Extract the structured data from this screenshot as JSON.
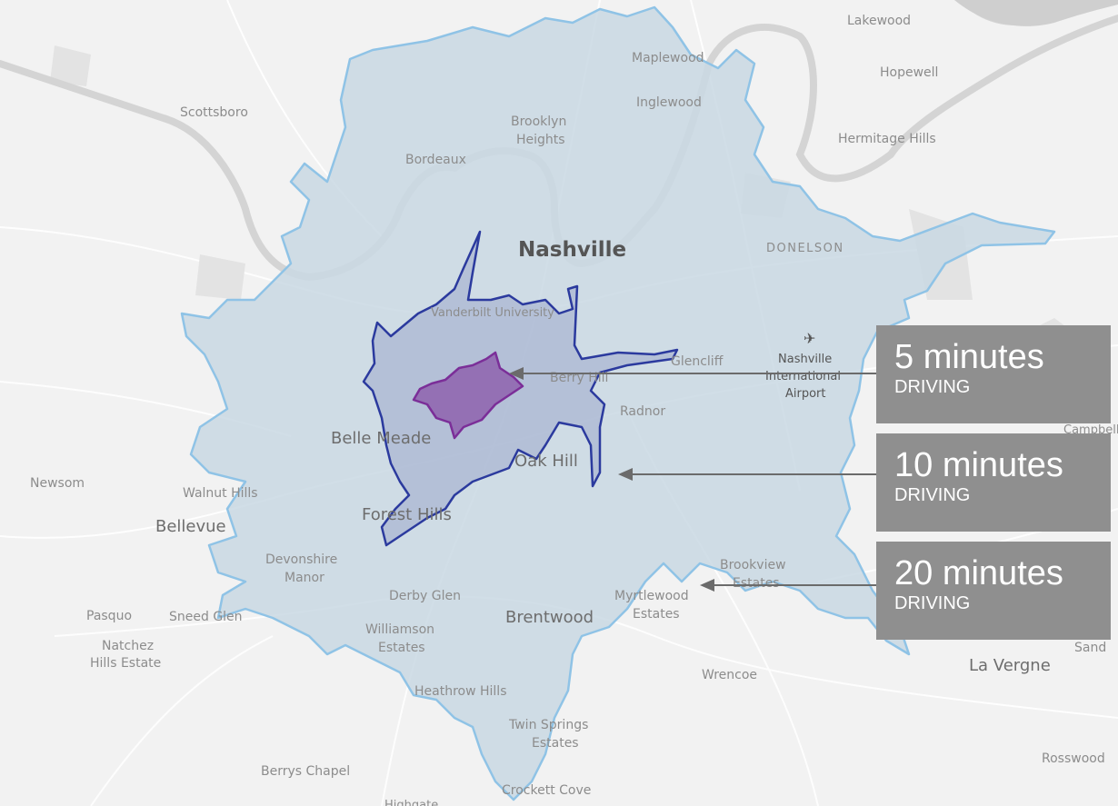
{
  "map": {
    "city": "Nashville",
    "places": {
      "lakewood": "Lakewood",
      "hopewell": "Hopewell",
      "maplewood": "Maplewood",
      "inglewood": "Inglewood",
      "scottsboro": "Scottsboro",
      "brooklyn_line1": "Brooklyn",
      "brooklyn_line2": "Heights",
      "bordeaux": "Bordeaux",
      "hermitage_hills": "Hermitage Hills",
      "donelson": "DONELSON",
      "vanderbilt": "Vanderbilt University",
      "berry_hill": "Berry Hill",
      "glencliff": "Glencliff",
      "airport_line1": "Nashville",
      "airport_line2": "International",
      "airport_line3": "Airport",
      "radnor": "Radnor",
      "belle_meade": "Belle Meade",
      "oak_hill": "Oak Hill",
      "campbell": "Campbell",
      "newsom": "Newsom",
      "walnut_hills": "Walnut Hills",
      "bellevue": "Bellevue",
      "forest_hills": "Forest Hills",
      "devonshire_line1": "Devonshire",
      "devonshire_line2": "Manor",
      "brookview_line1": "Brookview",
      "brookview_line2": "Estates",
      "derby_glen": "Derby Glen",
      "myrtlewood_line1": "Myrtlewood",
      "myrtlewood_line2": "Estates",
      "pasquo": "Pasquo",
      "sneed_glen": "Sneed Glen",
      "brentwood": "Brentwood",
      "sand": "Sand",
      "natchez_line1": "Natchez",
      "natchez_line2": "Hills Estate",
      "williamson_line1": "Williamson",
      "williamson_line2": "Estates",
      "la_vergne": "La Vergne",
      "wrencoe": "Wrencoe",
      "heathrow_hills": "Heathrow Hills",
      "twin_springs_line1": "Twin Springs",
      "twin_springs_line2": "Estates",
      "rosswood": "Rosswood",
      "berrys_chapel": "Berrys Chapel",
      "crockett_cove": "Crockett Cove",
      "highgate": "Highgate"
    }
  },
  "legend": [
    {
      "minutes": "5 minutes",
      "mode": "DRIVING"
    },
    {
      "minutes": "10 minutes",
      "mode": "DRIVING"
    },
    {
      "minutes": "20 minutes",
      "mode": "DRIVING"
    }
  ],
  "colors": {
    "map_background": "#f2f2f2",
    "river": "#d4d4d4",
    "isochrone_20_fill": "#c9d8e3",
    "isochrone_20_stroke": "#8fc3e6",
    "isochrone_10_fill": "#9ea9cc",
    "isochrone_10_stroke": "#2b3a9e",
    "isochrone_5_fill": "#8a56a8",
    "isochrone_5_stroke": "#7b2e98",
    "legend_background": "#8f8f8f",
    "arrow": "#6b6b6b"
  }
}
